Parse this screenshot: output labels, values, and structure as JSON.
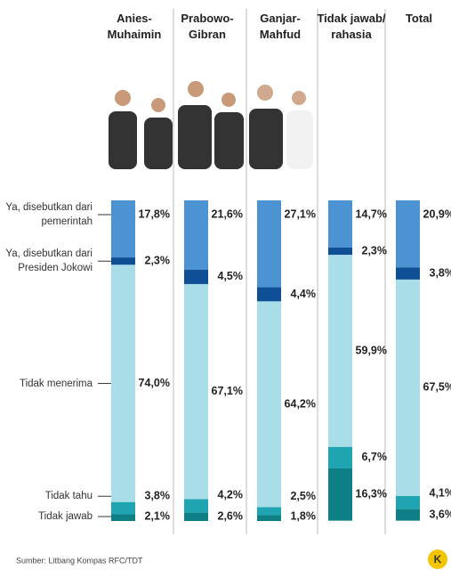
{
  "chart_data": {
    "type": "stacked_bar",
    "categories": [
      "Anies-\nMuhaimin",
      "Prabowo-\nGibran",
      "Ganjar-\nMahfud",
      "Tidak jawab/\nrahasia",
      "Total"
    ],
    "ylim": [
      0,
      100
    ],
    "series": [
      {
        "name": "Ya, disebutkan dari pemerintah",
        "color": "#4b93d3",
        "values": [
          17.8,
          21.6,
          27.1,
          14.7,
          20.9
        ],
        "value_labels": [
          "17,8%",
          "21,6%",
          "27,1%",
          "14,7%",
          "20,9%"
        ]
      },
      {
        "name": "Ya, disebutkan dari Presiden Jokowi",
        "color": "#0f4f96",
        "values": [
          2.3,
          4.5,
          4.4,
          2.3,
          3.8
        ],
        "value_labels": [
          "2,3%",
          "4,5%",
          "4,4%",
          "2,3%",
          "3,8%"
        ]
      },
      {
        "name": "Tidak menerima",
        "color": "#a9dde7",
        "values": [
          74.0,
          67.1,
          64.2,
          59.9,
          67.5
        ],
        "value_labels": [
          "74,0%",
          "67,1%",
          "64,2%",
          "59,9%",
          "67,5%"
        ]
      },
      {
        "name": "Tidak tahu",
        "color": "#1fa4b2",
        "values": [
          3.8,
          4.2,
          2.5,
          6.7,
          4.1
        ],
        "value_labels": [
          "3,8%",
          "4,2%",
          "2,5%",
          "6,7%",
          "4,1%"
        ]
      },
      {
        "name": "Tidak jawab",
        "color": "#0d7f85",
        "values": [
          2.1,
          2.6,
          1.8,
          16.3,
          3.6
        ],
        "value_labels": [
          "2,1%",
          "2,6%",
          "1,8%",
          "16,3%",
          "3,6%"
        ]
      }
    ],
    "source": "Sumber: Litbang Kompas RFC/TDT",
    "logo": "K"
  }
}
